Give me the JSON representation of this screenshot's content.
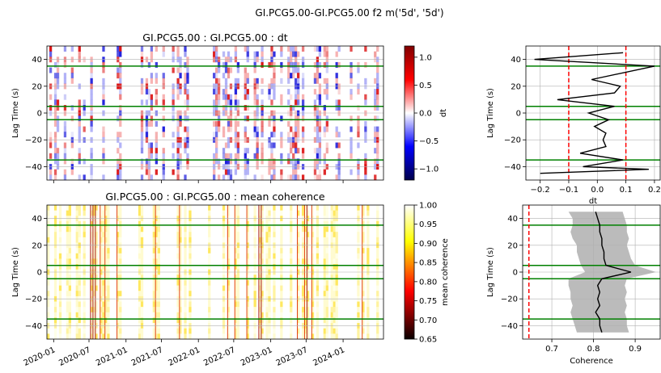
{
  "figure": {
    "suptitle": "GI.PCG5.00-GI.PCG5.00 f2 m('5d', '5d')"
  },
  "chart_data": [
    {
      "type": "heatmap",
      "title": "GI.PCG5.00 : GI.PCG5.00 : dt",
      "xlabel": "",
      "ylabel": "Lag Time (s)",
      "ylim": [
        -50,
        50
      ],
      "yticks": [
        "40",
        "20",
        "0",
        "−20",
        "−40"
      ],
      "ytick_values": [
        40,
        20,
        0,
        -20,
        -40
      ],
      "hlines": [
        35,
        5,
        -5,
        -35
      ],
      "hline_color": "#008000",
      "grid": true,
      "colorbar": {
        "label": "dt",
        "ticks": [
          "1.0",
          "0.5",
          "0.0",
          "−0.5",
          "−1.0"
        ],
        "tick_values": [
          1.0,
          0.5,
          0.0,
          -0.5,
          -1.0
        ],
        "range": [
          -1.2,
          1.2
        ],
        "cmap": "seismic"
      },
      "data_bands": [
        {
          "start": 0.0,
          "end": 0.225
        },
        {
          "start": 0.275,
          "end": 0.43
        },
        {
          "start": 0.48,
          "end": 0.5
        },
        {
          "start": 0.5,
          "end": 0.87
        },
        {
          "start": 0.9,
          "end": 1.0
        }
      ]
    },
    {
      "type": "heatmap",
      "title": "GI.PCG5.00 : GI.PCG5.00 : mean coherence",
      "xlabel": "",
      "ylabel": "Lag Time (s)",
      "xticks": [
        "2020-01",
        "2020-07",
        "2021-01",
        "2021-07",
        "2022-01",
        "2022-07",
        "2023-01",
        "2023-07",
        "2024-01"
      ],
      "ylim": [
        -50,
        50
      ],
      "yticks": [
        "40",
        "20",
        "0",
        "−20",
        "−40"
      ],
      "ytick_values": [
        40,
        20,
        0,
        -20,
        -40
      ],
      "hlines": [
        35,
        5,
        -5,
        -35
      ],
      "hline_color": "#008000",
      "grid": true,
      "colorbar": {
        "label": "mean coherence",
        "ticks": [
          "1.00",
          "0.95",
          "0.90",
          "0.85",
          "0.80",
          "0.75",
          "0.70",
          "0.65"
        ],
        "tick_values": [
          1.0,
          0.95,
          0.9,
          0.85,
          0.8,
          0.75,
          0.7,
          0.65
        ],
        "range": [
          0.65,
          1.0
        ],
        "cmap": "hot"
      }
    },
    {
      "type": "line",
      "title": "",
      "xlabel": "dt",
      "ylabel": "Lag Time (s)",
      "xlim": [
        -0.25,
        0.22
      ],
      "ylim": [
        -50,
        50
      ],
      "xticks": [
        "−0.2",
        "−0.1",
        "0.0",
        "0.1",
        "0.2"
      ],
      "xtick_values": [
        -0.2,
        -0.1,
        0.0,
        0.1,
        0.2
      ],
      "yticks": [
        "40",
        "20",
        "0",
        "−20",
        "−40"
      ],
      "ytick_values": [
        40,
        20,
        0,
        -20,
        -40
      ],
      "vlines": [
        -0.1,
        0.1
      ],
      "vline_color": "#ff0000",
      "hlines": [
        35,
        5,
        -5,
        -35
      ],
      "hline_color": "#008000",
      "grid": true,
      "series": [
        {
          "x": [
            0.09,
            -0.22,
            0.2,
            -0.02,
            0.08,
            0.06,
            -0.14,
            0.06,
            -0.03,
            0.04,
            -0.01,
            0.03,
            0.02,
            0.03,
            -0.06,
            0.09,
            -0.05,
            0.18,
            -0.2
          ],
          "y": [
            45,
            40,
            35,
            25,
            20,
            15,
            10,
            5,
            0,
            -5,
            -10,
            -15,
            -20,
            -25,
            -30,
            -35,
            -40,
            -42,
            -45
          ],
          "color": "#000000"
        }
      ]
    },
    {
      "type": "area",
      "title": "",
      "xlabel": "Coherence",
      "ylabel": "Lag Time (s)",
      "xlim": [
        0.63,
        0.96
      ],
      "ylim": [
        -50,
        50
      ],
      "xticks": [
        "0.7",
        "0.8",
        "0.9"
      ],
      "xtick_values": [
        0.7,
        0.8,
        0.9
      ],
      "yticks": [
        "40",
        "20",
        "0",
        "−20",
        "−40"
      ],
      "ytick_values": [
        40,
        20,
        0,
        -20,
        -40
      ],
      "vlines": [
        0.645
      ],
      "vline_color": "#ff0000",
      "hlines": [
        35,
        5,
        -5,
        -35
      ],
      "hline_color": "#008000",
      "grid": true,
      "series": [
        {
          "y": [
            45,
            40,
            35,
            30,
            25,
            20,
            15,
            10,
            5,
            0,
            -5,
            -10,
            -15,
            -20,
            -25,
            -30,
            -35,
            -40,
            -45
          ],
          "mean": [
            0.805,
            0.81,
            0.815,
            0.815,
            0.82,
            0.82,
            0.825,
            0.825,
            0.83,
            0.89,
            0.82,
            0.81,
            0.815,
            0.81,
            0.815,
            0.805,
            0.815,
            0.815,
            0.82
          ],
          "lower": [
            0.74,
            0.75,
            0.75,
            0.745,
            0.75,
            0.76,
            0.76,
            0.765,
            0.77,
            0.78,
            0.74,
            0.74,
            0.745,
            0.745,
            0.75,
            0.745,
            0.75,
            0.755,
            0.76
          ],
          "upper": [
            0.87,
            0.875,
            0.88,
            0.88,
            0.885,
            0.88,
            0.885,
            0.89,
            0.9,
            0.95,
            0.88,
            0.875,
            0.88,
            0.875,
            0.88,
            0.875,
            0.88,
            0.88,
            0.885
          ],
          "line_color": "#000000",
          "band_color": "#bbbbbb"
        }
      ]
    }
  ]
}
